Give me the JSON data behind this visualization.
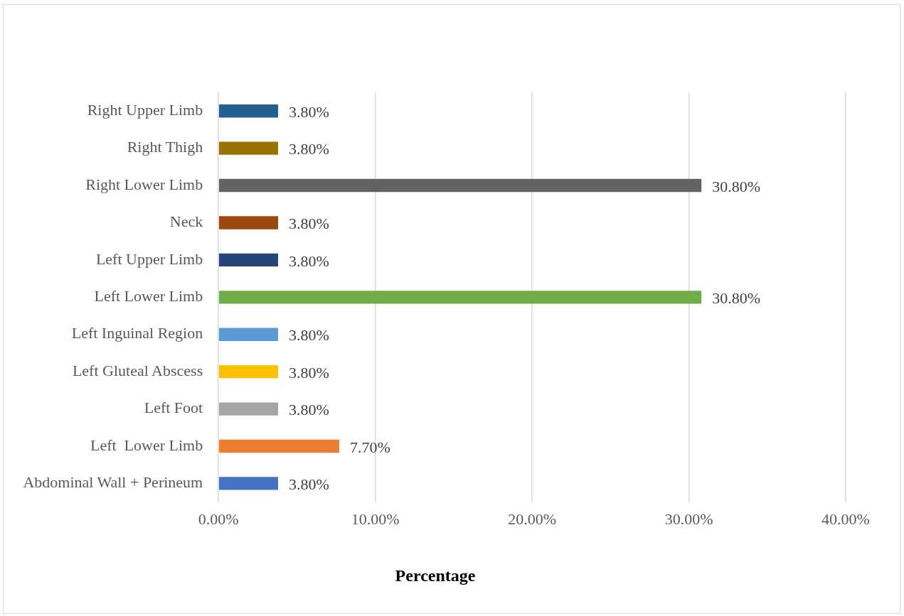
{
  "chart_data": {
    "type": "bar",
    "orientation": "horizontal",
    "xlabel": "Percentage",
    "categories": [
      "Right Upper Limb",
      "Right Thigh",
      "Right Lower Limb",
      "Neck",
      "Left Upper Limb",
      "Left Lower Limb",
      "Left Inguinal Region",
      "Left Gluteal Abscess",
      "Left Foot",
      "Left  Lower Limb",
      "Abdominal Wall + Perineum"
    ],
    "values": [
      3.8,
      3.8,
      30.8,
      3.8,
      3.8,
      30.8,
      3.8,
      3.8,
      3.8,
      7.7,
      3.8
    ],
    "value_labels": [
      "3.80%",
      "3.80%",
      "30.80%",
      "3.80%",
      "3.80%",
      "30.80%",
      "3.80%",
      "3.80%",
      "3.80%",
      "7.70%",
      "3.80%"
    ],
    "colors": [
      "#255e91",
      "#997300",
      "#636363",
      "#9e480e",
      "#264478",
      "#70ad47",
      "#5b9bd5",
      "#ffc000",
      "#a5a5a5",
      "#ed7d31",
      "#4472c4"
    ],
    "xlim": [
      0,
      40
    ],
    "xticks": [
      {
        "value": 0,
        "label": "0.00%"
      },
      {
        "value": 10,
        "label": "10.00%"
      },
      {
        "value": 20,
        "label": "20.00%"
      },
      {
        "value": 30,
        "label": "30.00%"
      },
      {
        "value": 40,
        "label": "40.00%"
      }
    ],
    "grid": "x",
    "legend": false
  }
}
